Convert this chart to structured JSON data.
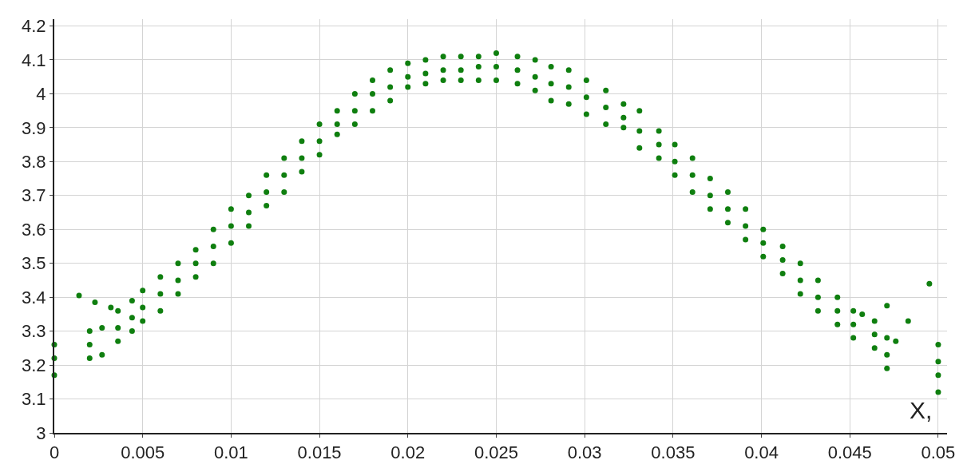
{
  "chart_data": {
    "type": "scatter",
    "xlabel": "X,",
    "x": [
      0,
      0,
      0,
      0.0014,
      0.002,
      0.002,
      0.002,
      0.0023,
      0.0027,
      0.0027,
      0.0032,
      0.0036,
      0.0036,
      0.0036,
      0.0044,
      0.0044,
      0.0044,
      0.005,
      0.005,
      0.005,
      0.006,
      0.006,
      0.006,
      0.007,
      0.007,
      0.007,
      0.008,
      0.008,
      0.008,
      0.009,
      0.009,
      0.009,
      0.01,
      0.01,
      0.01,
      0.011,
      0.011,
      0.011,
      0.012,
      0.012,
      0.012,
      0.013,
      0.013,
      0.013,
      0.014,
      0.014,
      0.014,
      0.015,
      0.015,
      0.015,
      0.016,
      0.016,
      0.016,
      0.017,
      0.017,
      0.017,
      0.018,
      0.018,
      0.018,
      0.019,
      0.019,
      0.019,
      0.02,
      0.02,
      0.02,
      0.021,
      0.021,
      0.021,
      0.022,
      0.022,
      0.022,
      0.023,
      0.023,
      0.023,
      0.024,
      0.024,
      0.024,
      0.025,
      0.025,
      0.025,
      0.0262,
      0.0262,
      0.0262,
      0.0272,
      0.0272,
      0.0272,
      0.0281,
      0.0281,
      0.0281,
      0.0291,
      0.0291,
      0.0291,
      0.0301,
      0.0301,
      0.0301,
      0.0312,
      0.0312,
      0.0312,
      0.0322,
      0.0322,
      0.0322,
      0.0331,
      0.0331,
      0.0331,
      0.0342,
      0.0342,
      0.0342,
      0.0351,
      0.0351,
      0.0351,
      0.0361,
      0.0361,
      0.0361,
      0.0371,
      0.0371,
      0.0371,
      0.0381,
      0.0381,
      0.0381,
      0.0391,
      0.0391,
      0.0391,
      0.0401,
      0.0401,
      0.0401,
      0.0412,
      0.0412,
      0.0412,
      0.0422,
      0.0422,
      0.0422,
      0.0432,
      0.0432,
      0.0432,
      0.0443,
      0.0443,
      0.0443,
      0.0452,
      0.0452,
      0.0452,
      0.0457,
      0.0464,
      0.0464,
      0.0464,
      0.0471,
      0.0471,
      0.0471,
      0.0471,
      0.0476,
      0.0483,
      0.0495,
      0.05,
      0.05,
      0.05,
      0.05
    ],
    "values": [
      3.17,
      3.22,
      3.26,
      3.405,
      3.22,
      3.26,
      3.3,
      3.385,
      3.23,
      3.31,
      3.37,
      3.27,
      3.31,
      3.36,
      3.3,
      3.34,
      3.39,
      3.33,
      3.37,
      3.42,
      3.36,
      3.41,
      3.46,
      3.41,
      3.45,
      3.5,
      3.46,
      3.5,
      3.54,
      3.5,
      3.55,
      3.6,
      3.56,
      3.61,
      3.66,
      3.61,
      3.65,
      3.7,
      3.67,
      3.71,
      3.76,
      3.71,
      3.76,
      3.81,
      3.77,
      3.81,
      3.86,
      3.82,
      3.86,
      3.91,
      3.88,
      3.91,
      3.95,
      3.91,
      3.95,
      4.0,
      3.95,
      4.0,
      4.04,
      3.98,
      4.02,
      4.07,
      4.02,
      4.05,
      4.09,
      4.03,
      4.06,
      4.1,
      4.04,
      4.07,
      4.11,
      4.04,
      4.07,
      4.11,
      4.04,
      4.08,
      4.11,
      4.04,
      4.08,
      4.12,
      4.03,
      4.07,
      4.11,
      4.01,
      4.05,
      4.1,
      3.98,
      4.03,
      4.08,
      3.97,
      4.02,
      4.07,
      3.94,
      3.99,
      4.04,
      3.91,
      3.96,
      4.01,
      3.9,
      3.93,
      3.97,
      3.84,
      3.89,
      3.95,
      3.81,
      3.85,
      3.89,
      3.76,
      3.8,
      3.85,
      3.71,
      3.76,
      3.81,
      3.66,
      3.7,
      3.75,
      3.62,
      3.66,
      3.71,
      3.57,
      3.61,
      3.66,
      3.52,
      3.56,
      3.6,
      3.47,
      3.51,
      3.55,
      3.41,
      3.45,
      3.5,
      3.36,
      3.4,
      3.45,
      3.32,
      3.36,
      3.4,
      3.28,
      3.32,
      3.36,
      3.35,
      3.25,
      3.29,
      3.33,
      3.375,
      3.19,
      3.23,
      3.28,
      3.27,
      3.33,
      3.44,
      3.12,
      3.17,
      3.21,
      3.26
    ],
    "color": "#0f7f0f",
    "marker": "circle",
    "grid": true,
    "xlim": [
      0,
      0.0505
    ],
    "ylim": [
      3,
      4.22
    ],
    "xticks": [
      0,
      0.005,
      0.01,
      0.015,
      0.02,
      0.025,
      0.03,
      0.035,
      0.04,
      0.045,
      0.05
    ],
    "yticks": [
      3,
      3.1,
      3.2,
      3.3,
      3.4,
      3.5,
      3.6,
      3.7,
      3.8,
      3.9,
      4,
      4.1,
      4.2
    ]
  }
}
